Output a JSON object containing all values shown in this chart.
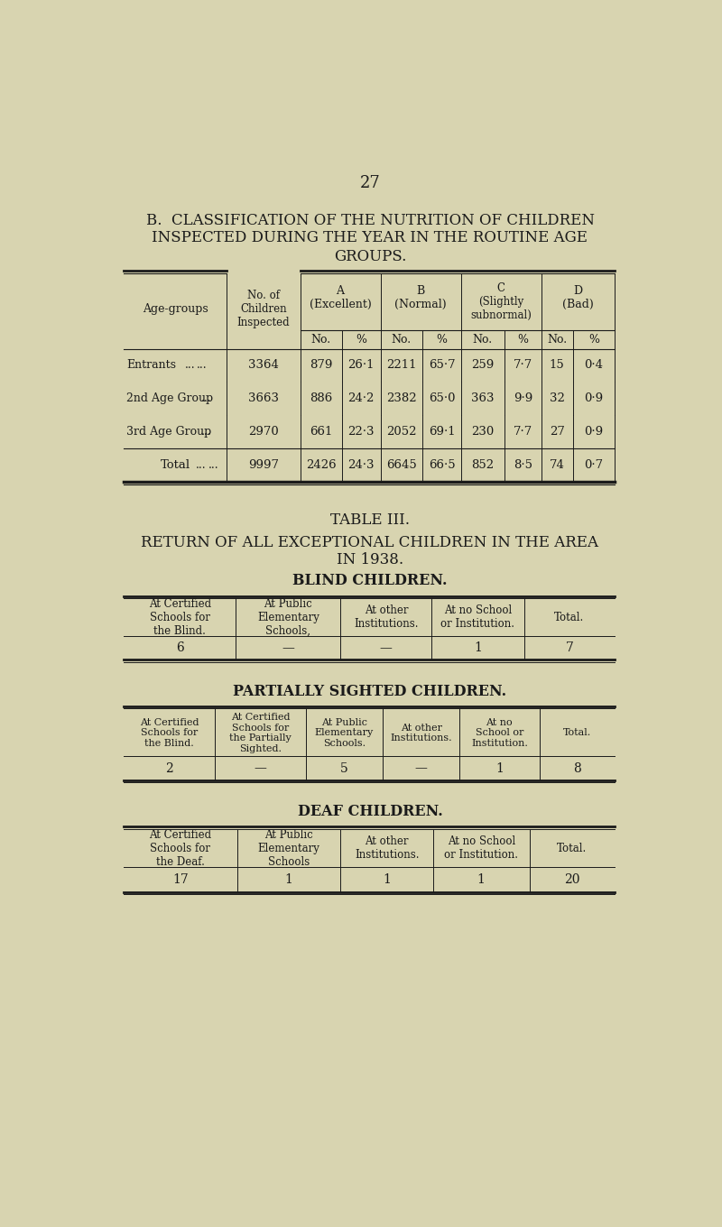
{
  "bg_color": "#d8d4b0",
  "text_color": "#1a1a1a",
  "page_number": "27",
  "title_b1": "B.  CLASSIFICATION OF THE NUTRITION OF CHILDREN",
  "title_b2": "INSPECTED DURING THE YEAR IN THE ROUTINE AGE",
  "title_b3": "GROUPS.",
  "table1_rows": [
    [
      "Entrants",
      "3364",
      "879",
      "26·1",
      "2211",
      "65·7",
      "259",
      "7·7",
      "15",
      "0·4"
    ],
    [
      "2nd Age Group",
      "3663",
      "886",
      "24·2",
      "2382",
      "65·0",
      "363",
      "9·9",
      "32",
      "0·9"
    ],
    [
      "3rd Age Group",
      "2970",
      "661",
      "22·3",
      "2052",
      "69·1",
      "230",
      "7·7",
      "27",
      "0·9"
    ],
    [
      "Total",
      "9997",
      "2426",
      "24·3",
      "6645",
      "66·5",
      "852",
      "8·5",
      "74",
      "0·7"
    ]
  ],
  "table_iii_title": "TABLE III.",
  "table_iii_sub1": "RETURN OF ALL EXCEPTIONAL CHILDREN IN THE AREA",
  "table_iii_sub2": "IN 1938.",
  "blind_title": "BLIND CHILDREN.",
  "blind_headers": [
    "At Certified\nSchools for\nthe Blind.",
    "At Public\nElementary\nSchools,",
    "At other\nInstitutions.",
    "At no School\nor Institution.",
    "Total."
  ],
  "blind_data": [
    "6",
    "—",
    "—",
    "1",
    "7"
  ],
  "partial_title": "PARTIALLY SIGHTED CHILDREN.",
  "partial_headers": [
    "At Certified\nSchools for\nthe Blind.",
    "At Certified\nSchools for\nthe Partially\nSighted.",
    "At Public\nElementary\nSchools.",
    "At other\nInstitutions.",
    "At no\nSchool or\nInstitution.",
    "Total."
  ],
  "partial_data": [
    "2",
    "—",
    "5",
    "—",
    "1",
    "8"
  ],
  "deaf_title": "DEAF CHILDREN.",
  "deaf_headers": [
    "At Certified\nSchools for\nthe Deaf.",
    "At Public\nElementary\nSchools",
    "At other\nInstitutions.",
    "At no School\nor Institution.",
    "Total."
  ],
  "deaf_data": [
    "17",
    "1",
    "1",
    "1",
    "20"
  ]
}
